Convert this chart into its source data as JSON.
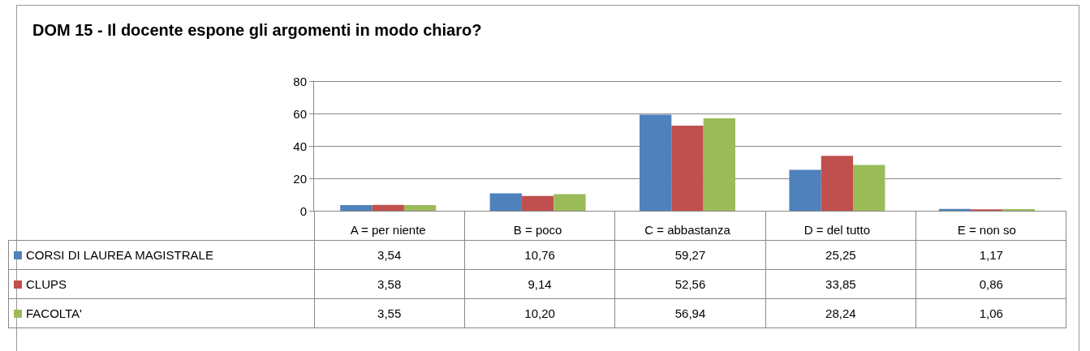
{
  "chart_data": {
    "type": "bar",
    "title": "DOM  15 - Il docente espone gli argomenti in modo chiaro?",
    "categories": [
      "A = per niente",
      "B = poco",
      "C = abbastanza",
      "D = del tutto",
      "E = non so"
    ],
    "series": [
      {
        "name": "CORSI DI LAUREA MAGISTRALE",
        "color": "#4f81bd",
        "values": [
          3.54,
          10.76,
          59.27,
          25.25,
          1.17
        ],
        "value_labels": [
          "3,54",
          "10,76",
          "59,27",
          "25,25",
          "1,17"
        ]
      },
      {
        "name": "CLUPS",
        "color": "#c0504d",
        "values": [
          3.58,
          9.14,
          52.56,
          33.85,
          0.86
        ],
        "value_labels": [
          "3,58",
          "9,14",
          "52,56",
          "33,85",
          "0,86"
        ]
      },
      {
        "name": "FACOLTA'",
        "color": "#9bbb59",
        "values": [
          3.55,
          10.2,
          56.94,
          28.24,
          1.06
        ],
        "value_labels": [
          "3,55",
          "10,20",
          "56,94",
          "28,24",
          "1,06"
        ]
      }
    ],
    "ylim": [
      0,
      80
    ],
    "yticks": [
      0,
      20,
      40,
      60,
      80
    ],
    "grid": "y",
    "legend": "bottom left"
  }
}
